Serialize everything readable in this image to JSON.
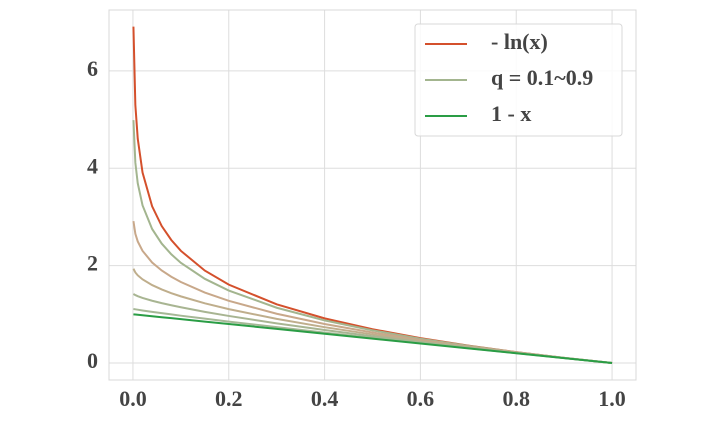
{
  "chart_data": {
    "type": "line",
    "x": [
      0.001,
      0.005,
      0.01,
      0.02,
      0.04,
      0.06,
      0.08,
      0.1,
      0.15,
      0.2,
      0.3,
      0.4,
      0.5,
      0.6,
      0.7,
      0.8,
      0.9,
      1.0
    ],
    "series": [
      {
        "name": "- ln(x)",
        "color": "#d4502c",
        "values": [
          6.908,
          5.298,
          4.605,
          3.912,
          3.219,
          2.813,
          2.526,
          2.303,
          1.897,
          1.609,
          1.204,
          0.916,
          0.693,
          0.511,
          0.357,
          0.223,
          0.105,
          0
        ]
      },
      {
        "name": "q = 0.1~0.9",
        "color": "#a3b58f",
        "values": [
          4.988,
          4.113,
          3.69,
          3.238,
          2.752,
          2.452,
          2.232,
          2.057,
          1.728,
          1.487,
          1.134,
          0.875,
          0.67,
          0.498,
          0.35,
          0.221,
          0.105,
          0
        ]
      },
      {
        "color": "#c8a88a",
        "values": [
          2.914,
          2.653,
          2.496,
          2.303,
          2.064,
          1.9,
          1.771,
          1.663,
          1.447,
          1.276,
          1.011,
          0.801,
          0.626,
          0.473,
          0.338,
          0.216,
          0.104,
          0
        ]
      },
      {
        "color": "#bfae8c",
        "values": [
          1.937,
          1.859,
          1.8,
          1.717,
          1.6,
          1.51,
          1.434,
          1.368,
          1.225,
          1.106,
          0.905,
          0.735,
          0.586,
          0.451,
          0.327,
          0.211,
          0.103,
          0
        ]
      },
      {
        "color": "#a8b592",
        "values": [
          1.417,
          1.394,
          1.372,
          1.336,
          1.278,
          1.229,
          1.185,
          1.144,
          1.05,
          0.966,
          0.814,
          0.676,
          0.549,
          0.429,
          0.316,
          0.207,
          0.102,
          0
        ]
      },
      {
        "color": "#a6b896",
        "values": [
          1.109,
          1.102,
          1.094,
          1.078,
          1.05,
          1.023,
          0.997,
          0.971,
          0.91,
          0.85,
          0.735,
          0.624,
          0.516,
          0.41,
          0.305,
          0.202,
          0.101,
          0
        ]
      },
      {
        "name": "1 - x",
        "color": "#2a9d45",
        "values": [
          0.999,
          0.995,
          0.99,
          0.98,
          0.96,
          0.94,
          0.92,
          0.9,
          0.85,
          0.8,
          0.7,
          0.6,
          0.5,
          0.4,
          0.3,
          0.2,
          0.1,
          0
        ]
      }
    ],
    "xlim": [
      -0.05,
      1.05
    ],
    "ylim": [
      -0.35,
      7.25
    ],
    "xticks": [
      {
        "value": 0,
        "label": "0.0"
      },
      0.2,
      0.4,
      0.6,
      0.8,
      {
        "value": 1,
        "label": "1.0"
      }
    ],
    "yticks": [
      0,
      2,
      4,
      6
    ],
    "grid": true,
    "legend": "upper right"
  }
}
